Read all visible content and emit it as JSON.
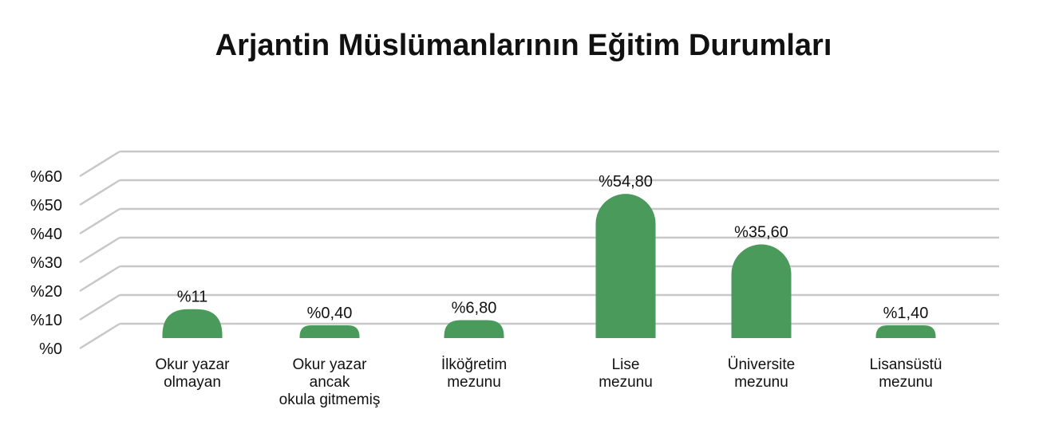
{
  "chart_data": {
    "type": "bar",
    "title": "Arjantin Müslümanlarının Eğitim Durumları",
    "categories": [
      [
        "Okur yazar",
        "olmayan"
      ],
      [
        "Okur yazar",
        "ancak",
        "okula gitmemiş"
      ],
      [
        "İlköğretim",
        "mezunu"
      ],
      [
        "Lise",
        "mezunu"
      ],
      [
        "Üniversite",
        "mezunu"
      ],
      [
        "Lisansüstü",
        "mezunu"
      ]
    ],
    "values": [
      11,
      0.4,
      6.8,
      54.8,
      35.6,
      1.4
    ],
    "data_labels": [
      "%11",
      "%0,40",
      "%6,80",
      "%54,80",
      "%35,60",
      "%1,40"
    ],
    "ytick_labels": [
      "%0",
      "%10",
      "%20",
      "%30",
      "%40",
      "%50",
      "%60"
    ],
    "ylim": [
      0,
      60
    ],
    "grid": true,
    "bar_color": "#4a9a5c"
  }
}
